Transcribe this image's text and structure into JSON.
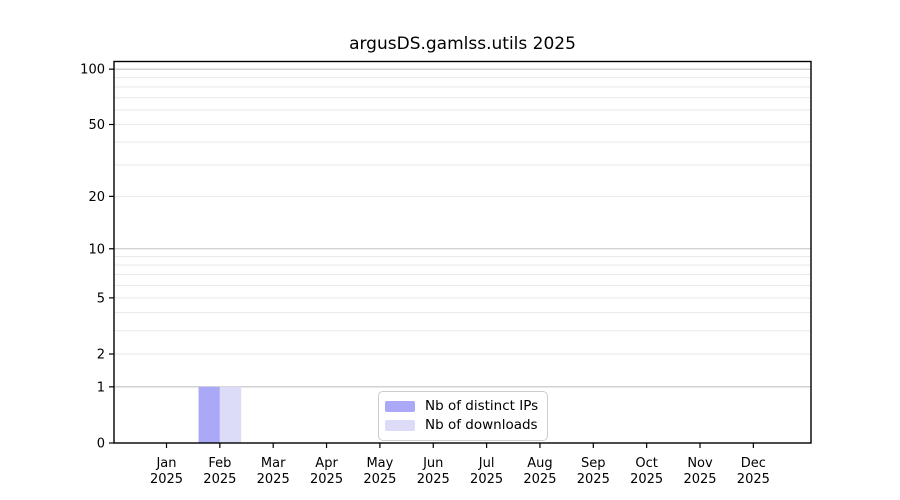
{
  "chart_data": {
    "type": "bar",
    "title": "argusDS.gamlss.utils 2025",
    "x_categories": [
      {
        "month": "Jan",
        "year": "2025"
      },
      {
        "month": "Feb",
        "year": "2025"
      },
      {
        "month": "Mar",
        "year": "2025"
      },
      {
        "month": "Apr",
        "year": "2025"
      },
      {
        "month": "May",
        "year": "2025"
      },
      {
        "month": "Jun",
        "year": "2025"
      },
      {
        "month": "Jul",
        "year": "2025"
      },
      {
        "month": "Aug",
        "year": "2025"
      },
      {
        "month": "Sep",
        "year": "2025"
      },
      {
        "month": "Oct",
        "year": "2025"
      },
      {
        "month": "Nov",
        "year": "2025"
      },
      {
        "month": "Dec",
        "year": "2025"
      }
    ],
    "series": [
      {
        "name": "Nb of distinct IPs",
        "color": "#a9a9f7",
        "values": [
          0,
          1,
          0,
          0,
          0,
          0,
          0,
          0,
          0,
          0,
          0,
          0
        ]
      },
      {
        "name": "Nb of downloads",
        "color": "#dcdcf9",
        "values": [
          0,
          1,
          0,
          0,
          0,
          0,
          0,
          0,
          0,
          0,
          0,
          0
        ]
      }
    ],
    "y_scale": "log1p",
    "ylim": [
      0,
      110
    ],
    "y_ticks": [
      0,
      1,
      2,
      5,
      10,
      20,
      50,
      100
    ],
    "y_major_grid": [
      1,
      10,
      100
    ],
    "y_minor_grid": [
      2,
      3,
      4,
      5,
      6,
      7,
      8,
      9,
      20,
      30,
      40,
      50,
      60,
      70,
      80,
      90
    ],
    "grid": "on",
    "legend_position": "lower center",
    "colors": {
      "major_gridline": "#c3c3c3",
      "minor_gridline": "#e9e9e9",
      "axis": "#000000",
      "legend_border": "#cccccc"
    }
  }
}
